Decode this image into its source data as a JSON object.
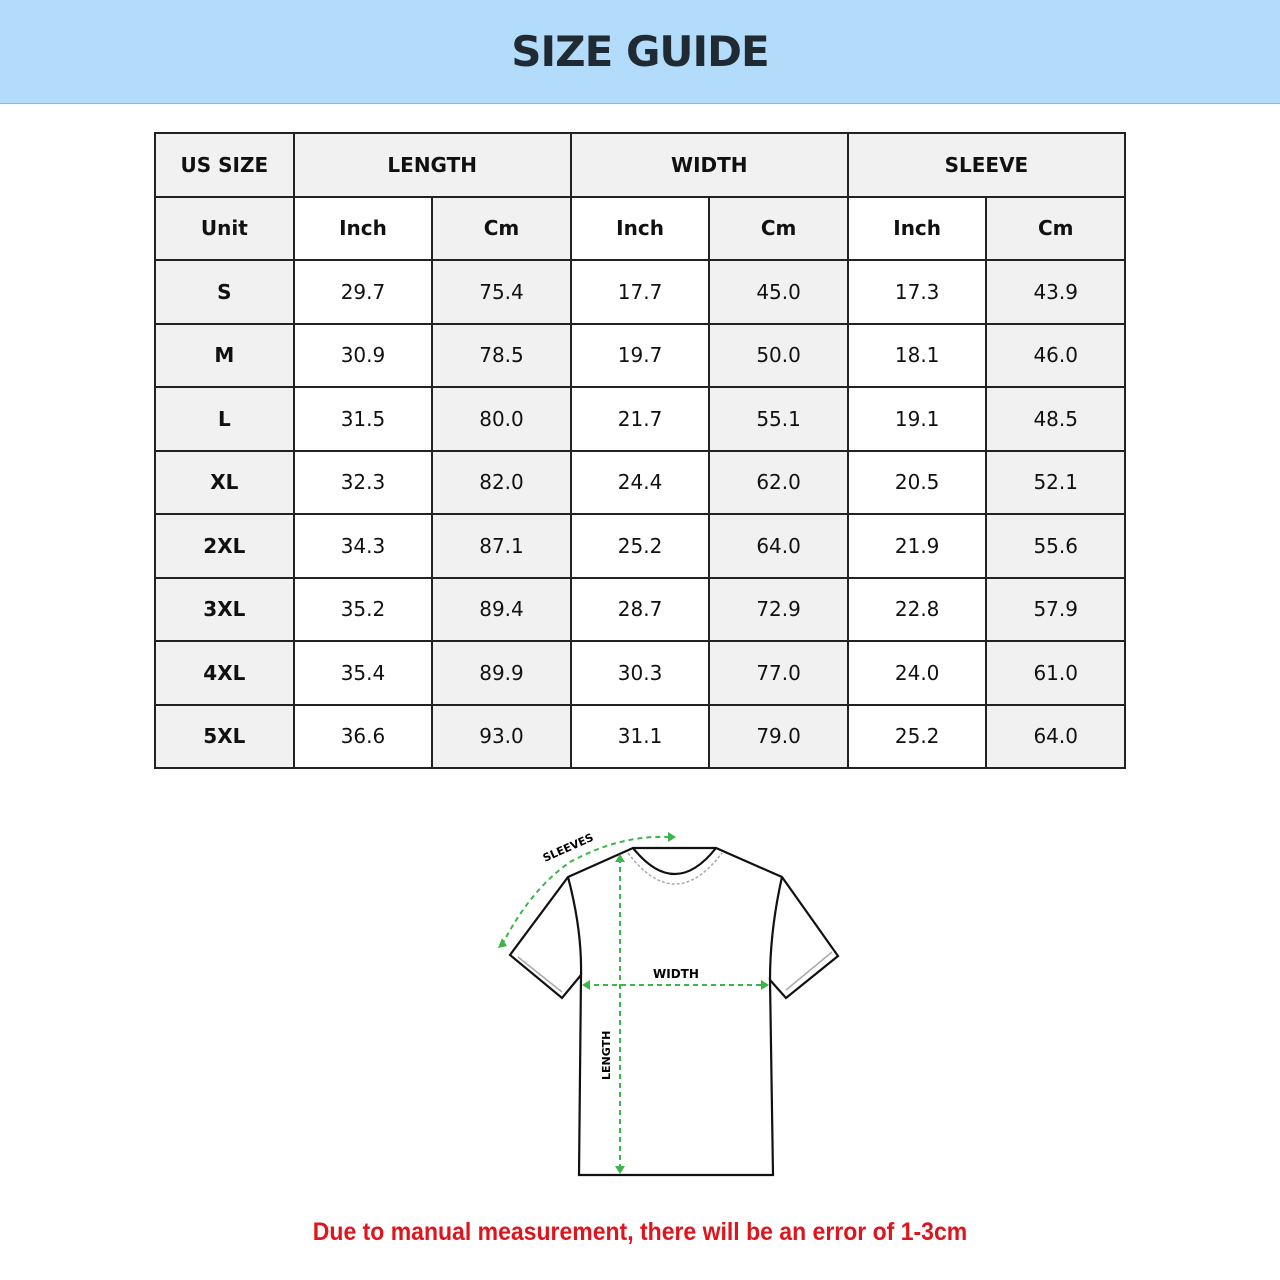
{
  "title": "SIZE GUIDE",
  "table": {
    "group_headers": [
      "US SIZE",
      "LENGTH",
      "WIDTH",
      "SLEEVE"
    ],
    "unit_row": [
      "Unit",
      "Inch",
      "Cm",
      "Inch",
      "Cm",
      "Inch",
      "Cm"
    ],
    "rows": [
      [
        "S",
        "29.7",
        "75.4",
        "17.7",
        "45.0",
        "17.3",
        "43.9"
      ],
      [
        "M",
        "30.9",
        "78.5",
        "19.7",
        "50.0",
        "18.1",
        "46.0"
      ],
      [
        "L",
        "31.5",
        "80.0",
        "21.7",
        "55.1",
        "19.1",
        "48.5"
      ],
      [
        "XL",
        "32.3",
        "82.0",
        "24.4",
        "62.0",
        "20.5",
        "52.1"
      ],
      [
        "2XL",
        "34.3",
        "87.1",
        "25.2",
        "64.0",
        "21.9",
        "55.6"
      ],
      [
        "3XL",
        "35.2",
        "89.4",
        "28.7",
        "72.9",
        "22.8",
        "57.9"
      ],
      [
        "4XL",
        "35.4",
        "89.9",
        "30.3",
        "77.0",
        "24.0",
        "61.0"
      ],
      [
        "5XL",
        "36.6",
        "93.0",
        "31.1",
        "79.0",
        "25.2",
        "64.0"
      ]
    ]
  },
  "diagram": {
    "sleeves_label": "SLEEVES",
    "width_label": "WIDTH",
    "length_label": "LENGTH",
    "arrow_color": "#3cb54a"
  },
  "note": "Due to manual measurement, there will be an error of 1-3cm",
  "colors": {
    "banner": "#b3dcfa",
    "note": "#e0141c"
  }
}
